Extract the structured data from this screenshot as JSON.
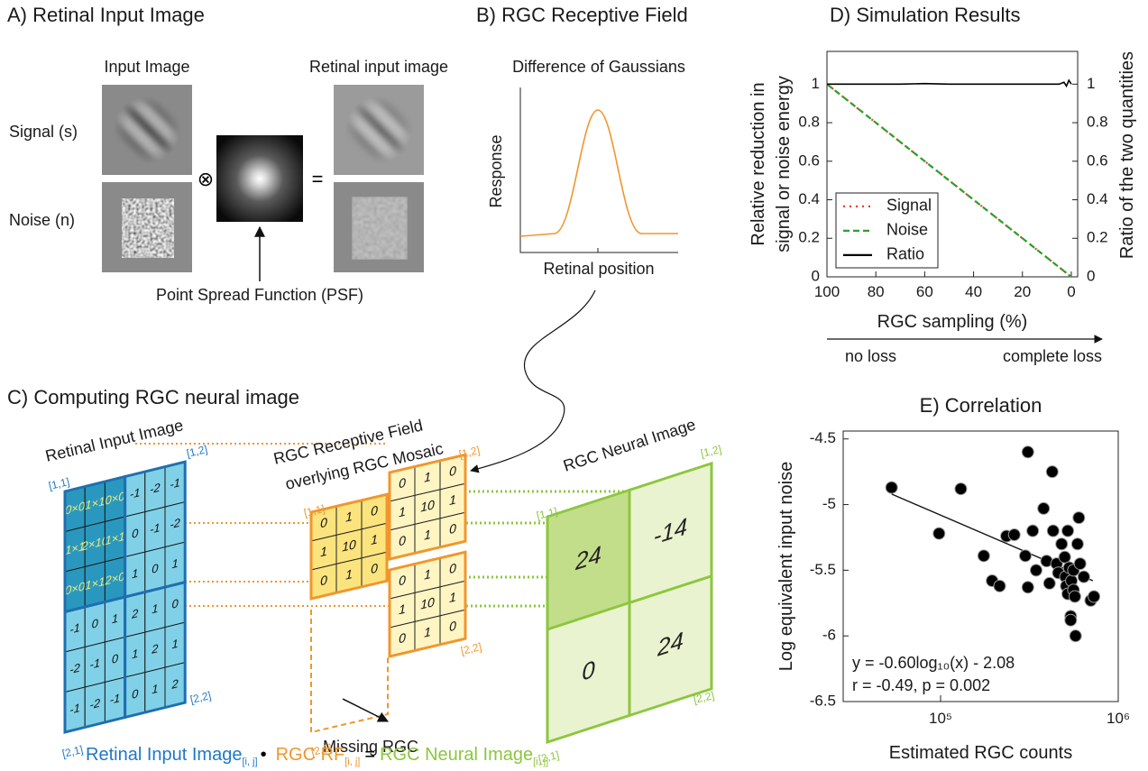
{
  "panels": {
    "a": {
      "title": "A) Retinal Input Image",
      "input_image": "Input Image",
      "retinal_input_image": "Retinal input image",
      "signal": "Signal (s)",
      "noise": "Noise (n)",
      "convolve": "⊗",
      "equals": "=",
      "psf": "Point Spread Function (PSF)"
    },
    "b": {
      "title": "B) RGC Receptive Field",
      "subtitle": "Difference of Gaussians",
      "y_label": "Response",
      "x_label": "Retinal position"
    },
    "c": {
      "title": "C) Computing RGC neural image",
      "input_label": "Retinal Input Image",
      "input_grid": [
        [
          "0×0",
          "1×1",
          "0×0",
          -1,
          -2,
          -1
        ],
        [
          "1×1",
          "2×10",
          "1×1",
          0,
          -1,
          -2
        ],
        [
          "0×0",
          "1×1",
          "2×0",
          1,
          0,
          1
        ],
        [
          -1,
          0,
          1,
          2,
          1,
          0
        ],
        [
          -2,
          -1,
          0,
          1,
          2,
          1
        ],
        [
          -1,
          -2,
          -1,
          0,
          1,
          2
        ]
      ],
      "input_corners": [
        "[1,1]",
        "[1,2]",
        "[2,1]",
        "[2,2]"
      ],
      "rf_label": [
        "RGC Receptive Field",
        "overlying RGC Mosaic"
      ],
      "rf_grids": [
        [
          [
            0,
            1,
            0
          ],
          [
            1,
            10,
            1
          ],
          [
            0,
            1,
            0
          ]
        ],
        [
          [
            0,
            1,
            0
          ],
          [
            1,
            10,
            1
          ],
          [
            0,
            1,
            0
          ]
        ],
        [
          [
            0,
            1,
            0
          ],
          [
            1,
            10,
            1
          ],
          [
            0,
            1,
            0
          ]
        ]
      ],
      "rf_corners": [
        "[1,1]",
        "[1,2]",
        "[2,1]",
        "[2,2]"
      ],
      "neural_label": "RGC Neural Image",
      "neural_grid": [
        [
          24,
          -14
        ],
        [
          0,
          24
        ]
      ],
      "neural_corners": [
        "[1,1]",
        "[1,2]",
        "[2,1]",
        "[2,2]"
      ],
      "missing": "Missing RGC",
      "formula": {
        "term1": "Retinal Input Image",
        "index1": "[i, j]",
        "dot": "•",
        "term2": "RGC RF",
        "index2": "[i, j]",
        "equals": "=",
        "term3": "RGC Neural Image",
        "index3": "[i, j]"
      }
    }
  },
  "chart_data": [
    {
      "type": "line",
      "title": "D) Simulation Results",
      "xlabel": "RGC sampling (%)",
      "ylabel": [
        "Relative reduction in",
        "signal or noise energy"
      ],
      "y2label": "Ratio of the two quantities",
      "annotations": [
        "no loss",
        "complete loss"
      ],
      "x": [
        100,
        90,
        80,
        70,
        60,
        50,
        40,
        30,
        20,
        10,
        5,
        3,
        2,
        1,
        0
      ],
      "series": [
        {
          "name": "Signal",
          "color": "#e8412c",
          "linestyle": "dotted",
          "values": [
            1,
            0.9,
            0.8,
            0.7,
            0.6,
            0.5,
            0.4,
            0.3,
            0.2,
            0.1,
            0.05,
            0.03,
            0.02,
            0.01,
            0
          ]
        },
        {
          "name": "Noise",
          "color": "#2ca02c",
          "linestyle": "dashed",
          "values": [
            1,
            0.9,
            0.8,
            0.7,
            0.6,
            0.5,
            0.4,
            0.3,
            0.2,
            0.1,
            0.05,
            0.03,
            0.02,
            0.01,
            0
          ]
        },
        {
          "name": "Ratio",
          "color": "#000000",
          "linestyle": "solid",
          "axis": "y2",
          "values": [
            1,
            1,
            1,
            1,
            1.003,
            1,
            1,
            1,
            1,
            1,
            1,
            1.01,
            0.99,
            1.02,
            1
          ]
        }
      ],
      "xlim": [
        100,
        -2.6
      ],
      "xticks": [
        100,
        80,
        60,
        40,
        20,
        0
      ],
      "ylim": [
        0,
        1.17
      ],
      "yticks": [
        0,
        0.2,
        0.4,
        0.6,
        0.8,
        1
      ],
      "y2lim": [
        0,
        1.17
      ],
      "y2ticks": [
        0,
        0.2,
        0.4,
        0.6,
        0.8,
        1
      ],
      "legend": "lower left"
    },
    {
      "type": "scatter",
      "title": "E) Correlation",
      "xlabel": "Estimated RGC counts",
      "ylabel": "Log equivalent input noise",
      "annotations": [
        "y = -0.60log₁₀(x) - 2.08",
        "r = -0.49, p = 0.002"
      ],
      "xscale": "log",
      "color": "#000000",
      "x": [
        53000,
        98000,
        130000,
        175000,
        195000,
        215000,
        235000,
        260000,
        300000,
        310000,
        310000,
        330000,
        345000,
        380000,
        395000,
        410000,
        425000,
        430000,
        450000,
        460000,
        480000,
        500000,
        505000,
        510000,
        520000,
        520000,
        530000,
        540000,
        545000,
        560000,
        560000,
        570000,
        575000,
        590000,
        600000,
        610000,
        640000,
        700000,
        730000,
        540000
      ],
      "values": [
        -4.87,
        -5.22,
        -4.88,
        -5.39,
        -5.58,
        -5.62,
        -5.24,
        -5.23,
        -5.39,
        -5.63,
        -4.6,
        -5.2,
        -5.5,
        -5.03,
        -5.43,
        -5.6,
        -4.75,
        -5.2,
        -5.45,
        -5.52,
        -5.3,
        -5.4,
        -5.55,
        -5.62,
        -5.2,
        -5.68,
        -5.48,
        -5.85,
        -5.58,
        -5.5,
        -5.65,
        -5.7,
        -6,
        -5.3,
        -5.1,
        -5.45,
        -5.55,
        -5.73,
        -5.7,
        -5.88
      ],
      "fit": {
        "x": [
          53000,
          720000
        ],
        "values": [
          -4.92,
          -5.58
        ]
      },
      "xlim": [
        28300,
        1000000
      ],
      "xticks": [
        {
          "value": 100000,
          "label": "10⁵"
        },
        {
          "value": 1000000,
          "label": "10⁶"
        }
      ],
      "ylim": [
        -6.5,
        -4.44
      ],
      "yticks": [
        -6.5,
        -6,
        -5.5,
        -5,
        -4.5
      ]
    }
  ]
}
